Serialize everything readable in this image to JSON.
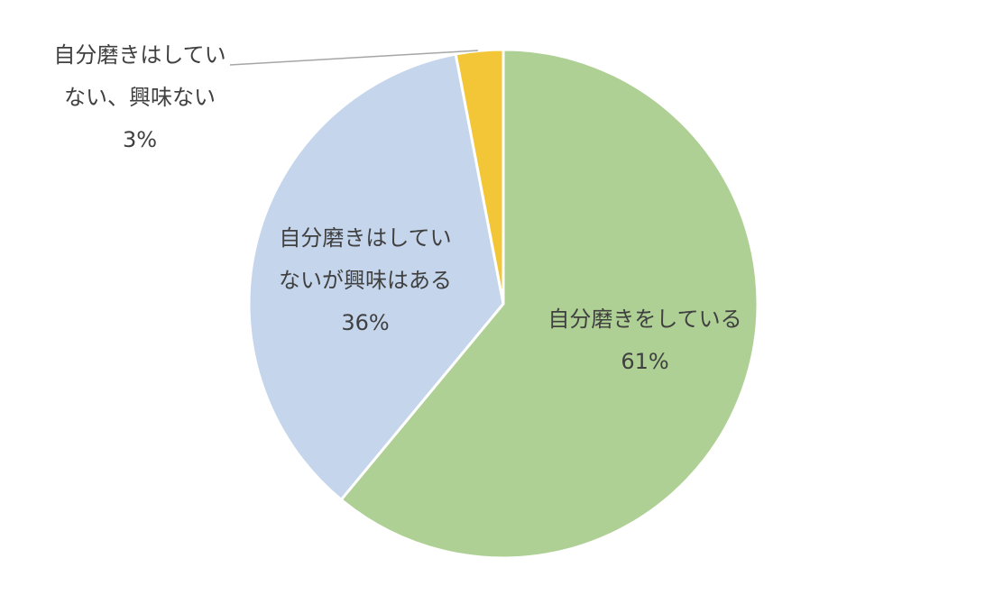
{
  "chart_data": {
    "type": "pie",
    "categories": [
      [
        "自分磨きをしている"
      ],
      [
        "自分磨きはしてい",
        "ないが興味はある"
      ],
      [
        "自分磨きはしてい",
        "ない、興味ない"
      ]
    ],
    "values": [
      61,
      36,
      3
    ],
    "value_labels": [
      "61%",
      "36%",
      "3%"
    ],
    "colors": [
      "#aed094",
      "#c4d5ec",
      "#f2c636"
    ]
  }
}
